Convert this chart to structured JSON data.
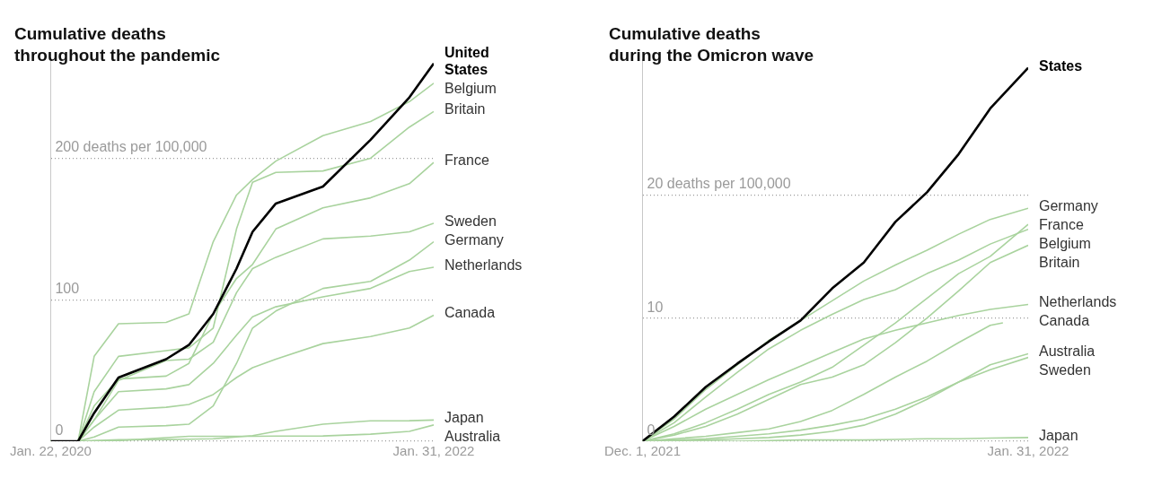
{
  "chart_data": [
    {
      "type": "line",
      "title": "Cumulative deaths throughout the pandemic",
      "marker": "none",
      "grid": "y",
      "x": [
        "2020-01-22",
        "2020-03-15",
        "2020-04-15",
        "2020-06-01",
        "2020-09-01",
        "2020-10-15",
        "2020-12-01",
        "2021-01-15",
        "2021-02-15",
        "2021-04-01",
        "2021-07-01",
        "2021-10-01",
        "2021-12-15",
        "2022-01-31"
      ],
      "xlim": [
        "2020-01-22",
        "2022-01-31"
      ],
      "xticks": [
        {
          "value": "2020-01-22",
          "label": "Jan. 22, 2020"
        },
        {
          "value": "2022-01-31",
          "label": "Jan. 31, 2022"
        }
      ],
      "ylim": [
        0,
        270
      ],
      "yticks": [
        0,
        100,
        {
          "value": 200,
          "label": "200 deaths per 100,000"
        }
      ],
      "series": [
        {
          "name": "United States",
          "color": "#000000",
          "values": [
            0,
            0,
            20,
            45,
            58,
            68,
            90,
            122,
            148,
            168,
            180,
            213,
            243,
            267
          ]
        },
        {
          "name": "Belgium",
          "color": "#a9d39e",
          "values": [
            0,
            0,
            60,
            83,
            84,
            90,
            141,
            174,
            185,
            198,
            216,
            226,
            240,
            253
          ]
        },
        {
          "name": "Britain",
          "color": "#a9d39e",
          "values": [
            0,
            0,
            35,
            60,
            64,
            66,
            80,
            150,
            183,
            190,
            191,
            200,
            222,
            233
          ]
        },
        {
          "name": "France",
          "color": "#a9d39e",
          "values": [
            0,
            0,
            25,
            44,
            46,
            55,
            90,
            115,
            125,
            150,
            165,
            172,
            182,
            197
          ]
        },
        {
          "name": "Sweden",
          "color": "#a9d39e",
          "values": [
            0,
            0,
            15,
            43,
            57,
            58,
            70,
            105,
            122,
            130,
            143,
            145,
            148,
            154
          ]
        },
        {
          "name": "Germany",
          "color": "#a9d39e",
          "values": [
            0,
            0,
            3,
            10,
            11,
            12,
            25,
            55,
            80,
            92,
            108,
            113,
            128,
            141
          ]
        },
        {
          "name": "Netherlands",
          "color": "#a9d39e",
          "values": [
            0,
            0,
            15,
            35,
            37,
            40,
            55,
            75,
            88,
            95,
            102,
            108,
            120,
            123
          ]
        },
        {
          "name": "Canada",
          "color": "#a9d39e",
          "values": [
            0,
            0,
            10,
            22,
            24,
            26,
            33,
            45,
            52,
            58,
            69,
            74,
            80,
            89
          ]
        },
        {
          "name": "Japan",
          "color": "#a9d39e",
          "values": [
            0,
            0,
            0.5,
            1,
            1.2,
            1.4,
            1.7,
            3,
            4,
            7,
            12,
            14.4,
            14.5,
            15
          ]
        },
        {
          "name": "Australia",
          "color": "#a9d39e",
          "values": [
            0,
            0,
            0.3,
            0.4,
            2.5,
            3.5,
            3.5,
            3.5,
            3.5,
            3.6,
            3.7,
            5,
            7,
            11.5
          ]
        }
      ]
    },
    {
      "type": "line",
      "title": "Cumulative deaths during the Omicron wave",
      "marker": "none",
      "grid": "y",
      "x": [
        "2021-12-01",
        "2021-12-06",
        "2021-12-11",
        "2021-12-16",
        "2021-12-21",
        "2021-12-26",
        "2021-12-31",
        "2022-01-05",
        "2022-01-10",
        "2022-01-15",
        "2022-01-20",
        "2022-01-25",
        "2022-01-31"
      ],
      "xlim": [
        "2021-12-01",
        "2022-01-31"
      ],
      "xticks": [
        {
          "value": "2021-12-01",
          "label": "Dec. 1, 2021"
        },
        {
          "value": "2022-01-31",
          "label": "Jan. 31, 2022"
        }
      ],
      "ylim": [
        0,
        31
      ],
      "yticks": [
        0,
        10,
        {
          "value": 20,
          "label": "20 deaths per 100,000"
        }
      ],
      "series": [
        {
          "name": "States",
          "color": "#000000",
          "values": [
            0,
            2.0,
            4.4,
            6.3,
            8.1,
            9.8,
            12.4,
            14.5,
            17.8,
            20.2,
            23.3,
            27.0,
            30.3
          ]
        },
        {
          "name": "Germany",
          "color": "#a9d39e",
          "values": [
            0,
            1.8,
            4.2,
            6.2,
            8.2,
            9.8,
            11.4,
            13.0,
            14.3,
            15.5,
            16.8,
            18.0,
            18.9
          ]
        },
        {
          "name": "France",
          "color": "#a9d39e",
          "values": [
            0,
            0.6,
            1.5,
            2.6,
            3.8,
            4.8,
            6.0,
            7.8,
            9.6,
            11.6,
            13.6,
            15.0,
            17.6
          ]
        },
        {
          "name": "Belgium",
          "color": "#a9d39e",
          "values": [
            0,
            1.5,
            3.6,
            5.6,
            7.5,
            9.0,
            10.3,
            11.5,
            12.3,
            13.6,
            14.7,
            16.0,
            17.2
          ]
        },
        {
          "name": "Britain",
          "color": "#a9d39e",
          "values": [
            0,
            0.5,
            1.2,
            2.2,
            3.4,
            4.6,
            5.2,
            6.2,
            8.0,
            10.0,
            12.2,
            14.5,
            15.9
          ]
        },
        {
          "name": "Netherlands",
          "color": "#a9d39e",
          "values": [
            0,
            1.2,
            2.6,
            3.8,
            5.0,
            6.1,
            7.2,
            8.3,
            9.0,
            9.6,
            10.2,
            10.7,
            11.1
          ]
        },
        {
          "name": "Canada",
          "color": "#a9d39e",
          "x": [
            "2021-12-01",
            "2021-12-06",
            "2021-12-11",
            "2021-12-16",
            "2021-12-21",
            "2021-12-26",
            "2021-12-31",
            "2022-01-05",
            "2022-01-10",
            "2022-01-15",
            "2022-01-20",
            "2022-01-25",
            "2022-01-27"
          ],
          "values": [
            0,
            0.2,
            0.4,
            0.7,
            1.0,
            1.6,
            2.5,
            3.8,
            5.2,
            6.5,
            8.0,
            9.4,
            9.6
          ]
        },
        {
          "name": "Australia",
          "color": "#a9d39e",
          "values": [
            0,
            0,
            0.1,
            0.2,
            0.3,
            0.5,
            0.8,
            1.3,
            2.2,
            3.4,
            4.8,
            6.2,
            7.1
          ]
        },
        {
          "name": "Sweden",
          "color": "#a9d39e",
          "values": [
            0,
            0.1,
            0.2,
            0.4,
            0.6,
            0.9,
            1.3,
            1.8,
            2.6,
            3.6,
            4.8,
            5.8,
            6.8
          ]
        },
        {
          "name": "Japan",
          "color": "#a9d39e",
          "values": [
            0,
            0,
            0,
            0,
            0.05,
            0.1,
            0.1,
            0.1,
            0.15,
            0.2,
            0.2,
            0.25,
            0.3
          ]
        }
      ]
    }
  ]
}
